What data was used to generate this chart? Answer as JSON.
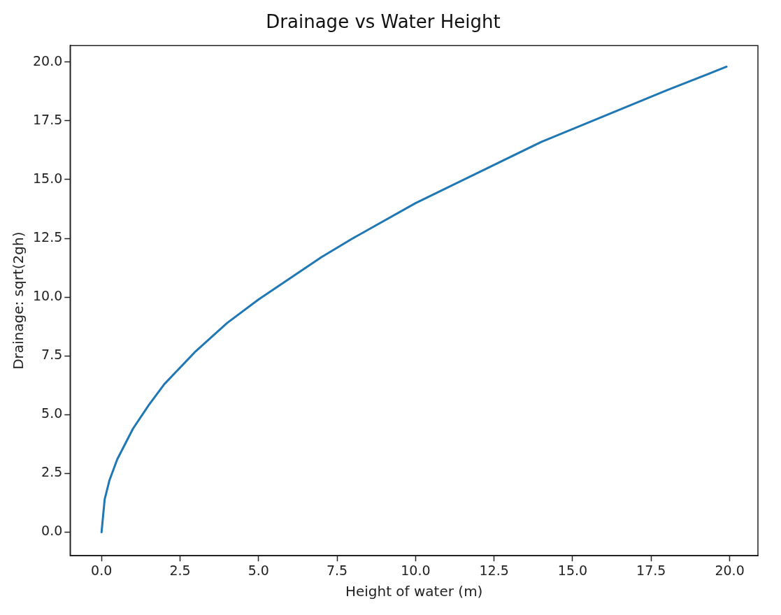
{
  "chart_data": {
    "type": "line",
    "title": "Drainage vs Water Height",
    "xlabel": "Height of water (m)",
    "ylabel": "Drainage: sqrt(2gh)",
    "x": [
      0,
      0.1,
      0.25,
      0.5,
      1,
      1.5,
      2,
      3,
      4,
      5,
      6,
      7,
      8,
      10,
      12,
      14,
      16,
      18,
      19.9
    ],
    "series": [
      {
        "color": "#1f77b4",
        "values": [
          0,
          1.4,
          2.2,
          3.1,
          4.4,
          5.4,
          6.3,
          7.7,
          8.9,
          9.9,
          10.8,
          11.7,
          12.5,
          14.0,
          15.3,
          16.6,
          17.7,
          18.8,
          19.8
        ]
      }
    ],
    "xlim": [
      -1,
      20.9
    ],
    "ylim": [
      -1,
      20.7
    ],
    "xticks": [
      {
        "value": 0,
        "label": "0.0"
      },
      {
        "value": 2.5,
        "label": "2.5"
      },
      {
        "value": 5,
        "label": "5.0"
      },
      {
        "value": 7.5,
        "label": "7.5"
      },
      {
        "value": 10,
        "label": "10.0"
      },
      {
        "value": 12.5,
        "label": "12.5"
      },
      {
        "value": 15,
        "label": "15.0"
      },
      {
        "value": 17.5,
        "label": "17.5"
      },
      {
        "value": 20,
        "label": "20.0"
      }
    ],
    "yticks": [
      {
        "value": 0,
        "label": "0.0"
      },
      {
        "value": 2.5,
        "label": "2.5"
      },
      {
        "value": 5,
        "label": "5.0"
      },
      {
        "value": 7.5,
        "label": "7.5"
      },
      {
        "value": 10,
        "label": "10.0"
      },
      {
        "value": 12.5,
        "label": "12.5"
      },
      {
        "value": 15,
        "label": "15.0"
      },
      {
        "value": 17.5,
        "label": "17.5"
      },
      {
        "value": 20,
        "label": "20.0"
      }
    ],
    "marker": "none"
  }
}
